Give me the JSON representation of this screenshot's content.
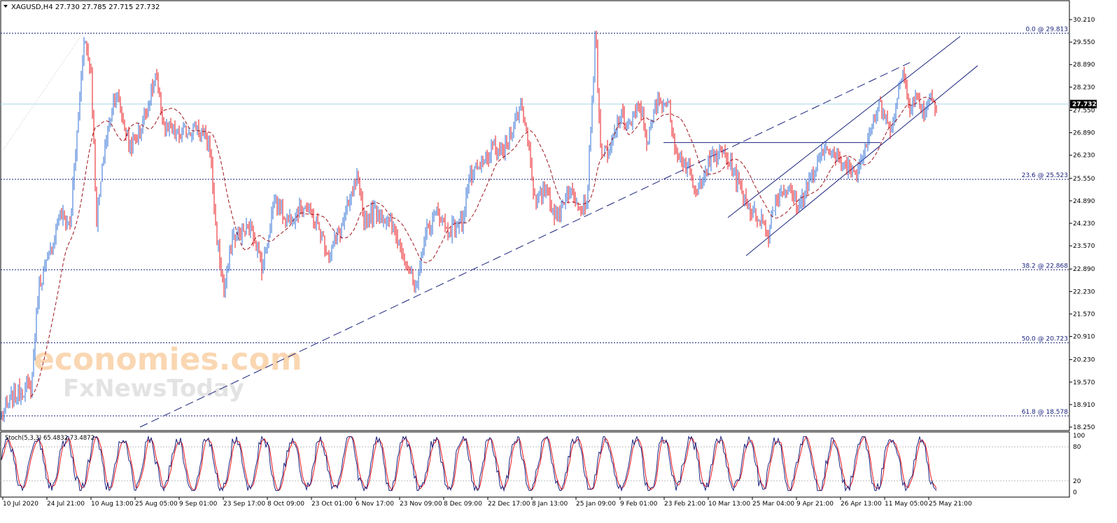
{
  "header": {
    "symbol_line": "XAGUSD,H4  27.730 27.785 27.715 27.732",
    "collapse_icon": "triangle-down-icon"
  },
  "indicator": {
    "label": "Stoch(5,3,3) 65.4832 73.4872",
    "levels": [
      "100",
      "80",
      "20",
      "0"
    ]
  },
  "price_marker": {
    "value": "27.732",
    "price": 27.732
  },
  "watermark": {
    "line1": "economies.com",
    "line2": "FxNewsToday"
  },
  "colors": {
    "bull": "#2f6fd6",
    "bear": "#e8141b",
    "ma": "#a0141b",
    "trend": "#1a237e",
    "price_line": "#a8d8e8",
    "stoch_k": "#1a237e",
    "stoch_d": "#e8141b"
  },
  "chart_data": {
    "type": "candlestick",
    "title": "XAGUSD,H4",
    "ylim": [
      18.25,
      30.21
    ],
    "y_ticks": [
      "30.210",
      "29.550",
      "28.890",
      "28.230",
      "27.550",
      "26.890",
      "26.230",
      "25.550",
      "24.890",
      "24.230",
      "23.570",
      "22.890",
      "22.230",
      "21.570",
      "20.910",
      "20.230",
      "19.570",
      "18.910",
      "18.250"
    ],
    "y_tick_values": [
      30.21,
      29.55,
      28.89,
      28.23,
      27.55,
      26.89,
      26.23,
      25.55,
      24.89,
      24.23,
      23.57,
      22.89,
      22.23,
      21.57,
      20.91,
      20.23,
      19.57,
      18.91,
      18.25
    ],
    "x_ticks": [
      "10 Jul 2020",
      "24 Jul 21:00",
      "10 Aug 13:00",
      "25 Aug 05:00",
      "9 Sep 01:00",
      "23 Sep 17:00",
      "8 Oct 09:00",
      "23 Oct 01:00",
      "6 Nov 17:00",
      "23 Nov 09:00",
      "8 Dec 09:00",
      "22 Dec 17:00",
      "8 Jan 13:00",
      "25 Jan 09:00",
      "9 Feb 01:00",
      "23 Feb 21:00",
      "10 Mar 13:00",
      "25 Mar 04:00",
      "9 Apr 21:00",
      "26 Apr 13:00",
      "11 May 05:00",
      "25 May 21:00"
    ],
    "fibonacci": [
      {
        "label": "0.0 @ 29.813",
        "value": 29.813
      },
      {
        "label": "23.6 @ 25.523",
        "value": 25.523
      },
      {
        "label": "38.2 @ 22.868",
        "value": 22.868
      },
      {
        "label": "50.0 @ 20.723",
        "value": 20.723
      },
      {
        "label": "61.8 @ 18.578",
        "value": 18.578
      }
    ],
    "path_anchors": [
      [
        0,
        18.5
      ],
      [
        20,
        19.2
      ],
      [
        45,
        19.5
      ],
      [
        55,
        22.4
      ],
      [
        70,
        23.2
      ],
      [
        85,
        24.5
      ],
      [
        100,
        24.2
      ],
      [
        110,
        26.8
      ],
      [
        120,
        29.7
      ],
      [
        130,
        28.7
      ],
      [
        138,
        24.3
      ],
      [
        150,
        26.5
      ],
      [
        165,
        28.1
      ],
      [
        185,
        26.5
      ],
      [
        200,
        26.9
      ],
      [
        222,
        28.5
      ],
      [
        235,
        27.0
      ],
      [
        255,
        26.8
      ],
      [
        280,
        27.1
      ],
      [
        300,
        26.5
      ],
      [
        308,
        24.1
      ],
      [
        320,
        22.2
      ],
      [
        332,
        23.8
      ],
      [
        345,
        24.0
      ],
      [
        360,
        24.1
      ],
      [
        375,
        22.9
      ],
      [
        392,
        25.0
      ],
      [
        410,
        24.3
      ],
      [
        435,
        24.8
      ],
      [
        455,
        24.1
      ],
      [
        470,
        23.3
      ],
      [
        490,
        24.2
      ],
      [
        510,
        25.5
      ],
      [
        520,
        24.4
      ],
      [
        540,
        24.6
      ],
      [
        560,
        24.1
      ],
      [
        578,
        23.3
      ],
      [
        595,
        22.1
      ],
      [
        605,
        23.8
      ],
      [
        625,
        24.6
      ],
      [
        640,
        24.0
      ],
      [
        660,
        24.3
      ],
      [
        670,
        25.5
      ],
      [
        688,
        25.9
      ],
      [
        705,
        26.4
      ],
      [
        720,
        26.3
      ],
      [
        735,
        27.2
      ],
      [
        745,
        27.7
      ],
      [
        755,
        26.7
      ],
      [
        765,
        24.7
      ],
      [
        780,
        25.3
      ],
      [
        795,
        24.3
      ],
      [
        810,
        25.2
      ],
      [
        825,
        24.9
      ],
      [
        838,
        24.8
      ],
      [
        845,
        27.5
      ],
      [
        851,
        29.9
      ],
      [
        858,
        26.4
      ],
      [
        870,
        26.2
      ],
      [
        885,
        27.4
      ],
      [
        900,
        27.1
      ],
      [
        915,
        27.7
      ],
      [
        925,
        26.6
      ],
      [
        940,
        27.9
      ],
      [
        955,
        27.7
      ],
      [
        965,
        26.5
      ],
      [
        985,
        25.7
      ],
      [
        995,
        25.0
      ],
      [
        1005,
        25.8
      ],
      [
        1020,
        26.2
      ],
      [
        1035,
        26.3
      ],
      [
        1045,
        25.9
      ],
      [
        1060,
        25.2
      ],
      [
        1075,
        24.5
      ],
      [
        1088,
        24.4
      ],
      [
        1097,
        23.8
      ],
      [
        1105,
        24.8
      ],
      [
        1120,
        25.3
      ],
      [
        1135,
        25.0
      ],
      [
        1142,
        24.7
      ],
      [
        1150,
        25.2
      ],
      [
        1165,
        25.8
      ],
      [
        1182,
        26.6
      ],
      [
        1195,
        26.1
      ],
      [
        1210,
        25.9
      ],
      [
        1225,
        25.8
      ],
      [
        1235,
        26.5
      ],
      [
        1248,
        27.3
      ],
      [
        1258,
        27.7
      ],
      [
        1270,
        27.0
      ],
      [
        1280,
        27.6
      ],
      [
        1290,
        28.7
      ],
      [
        1300,
        27.7
      ],
      [
        1312,
        27.9
      ],
      [
        1320,
        27.5
      ],
      [
        1328,
        28.0
      ],
      [
        1338,
        27.73
      ]
    ],
    "ma_period": 21,
    "trendlines": [
      {
        "style": "dashed",
        "from": [
          200,
          18.25
        ],
        "to": [
          1300,
          28.95
        ]
      },
      {
        "style": "solid",
        "from": [
          1040,
          24.4
        ],
        "to": [
          1372,
          29.72
        ]
      },
      {
        "style": "solid",
        "from": [
          1066,
          23.28
        ],
        "to": [
          1397,
          28.86
        ]
      },
      {
        "style": "solid",
        "from": [
          948,
          26.6
        ],
        "to": [
          1258,
          26.6
        ]
      }
    ],
    "stoch_lim": [
      0,
      100
    ]
  }
}
